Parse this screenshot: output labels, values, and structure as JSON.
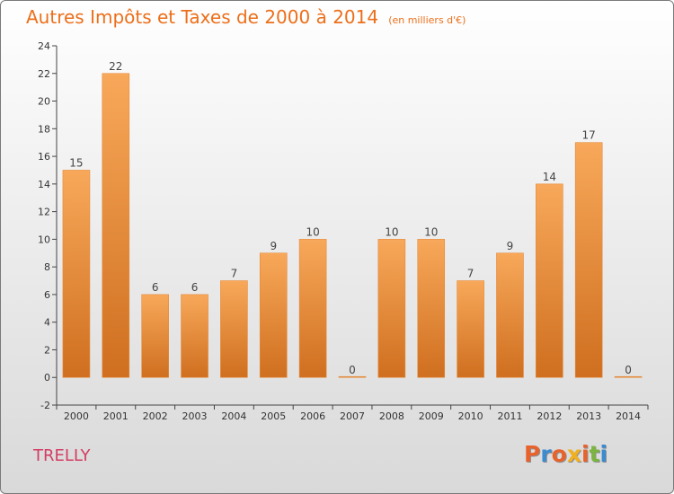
{
  "title": "Autres Impôts et Taxes de 2000 à 2014",
  "unit_label": "(en milliers d'€)",
  "commune": "TRELLY",
  "logo_text": "Proxiti",
  "colors": {
    "title": "#ec6f1a",
    "bar_light": "#f8a85a",
    "bar_dark": "#cf6f1f",
    "commune": "#d33d63",
    "logo": [
      "#e8632c",
      "#3a8bcf",
      "#e8632c",
      "#f0b020",
      "#e8632c",
      "#7bb540",
      "#3a8bcf"
    ]
  },
  "chart_data": {
    "type": "bar",
    "title": "Autres Impôts et Taxes de 2000 à 2014",
    "subtitle": "(en milliers d'€)",
    "categories": [
      "2000",
      "2001",
      "2002",
      "2003",
      "2004",
      "2005",
      "2006",
      "2007",
      "2008",
      "2009",
      "2010",
      "2011",
      "2012",
      "2013",
      "2014"
    ],
    "values": [
      15,
      22,
      6,
      6,
      7,
      9,
      10,
      0,
      10,
      10,
      7,
      9,
      14,
      17,
      0
    ],
    "ylim": [
      -2,
      24
    ],
    "yticks": [
      -2,
      0,
      2,
      4,
      6,
      8,
      10,
      12,
      14,
      16,
      18,
      20,
      22,
      24
    ],
    "xlabel": "",
    "ylabel": "",
    "grid": false,
    "data_labels": true
  }
}
